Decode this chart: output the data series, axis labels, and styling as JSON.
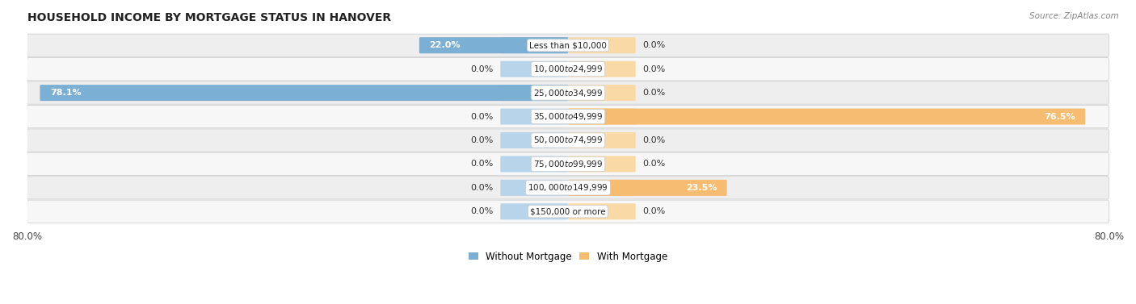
{
  "title": "HOUSEHOLD INCOME BY MORTGAGE STATUS IN HANOVER",
  "source": "Source: ZipAtlas.com",
  "categories": [
    "Less than $10,000",
    "$10,000 to $24,999",
    "$25,000 to $34,999",
    "$35,000 to $49,999",
    "$50,000 to $74,999",
    "$75,000 to $99,999",
    "$100,000 to $149,999",
    "$150,000 or more"
  ],
  "without_mortgage": [
    22.0,
    0.0,
    78.1,
    0.0,
    0.0,
    0.0,
    0.0,
    0.0
  ],
  "with_mortgage": [
    0.0,
    0.0,
    0.0,
    76.5,
    0.0,
    0.0,
    23.5,
    0.0
  ],
  "color_without": "#7bafd4",
  "color_without_stub": "#b8d4ea",
  "color_with": "#f5bc72",
  "color_with_stub": "#f9d9a6",
  "x_min": -80.0,
  "x_max": 80.0,
  "stub_size": 10.0,
  "row_bg_colors": [
    "#eeeeee",
    "#f7f7f7"
  ],
  "title_fontsize": 10,
  "label_fontsize": 8,
  "category_fontsize": 7.5,
  "axis_label_fontsize": 8.5
}
